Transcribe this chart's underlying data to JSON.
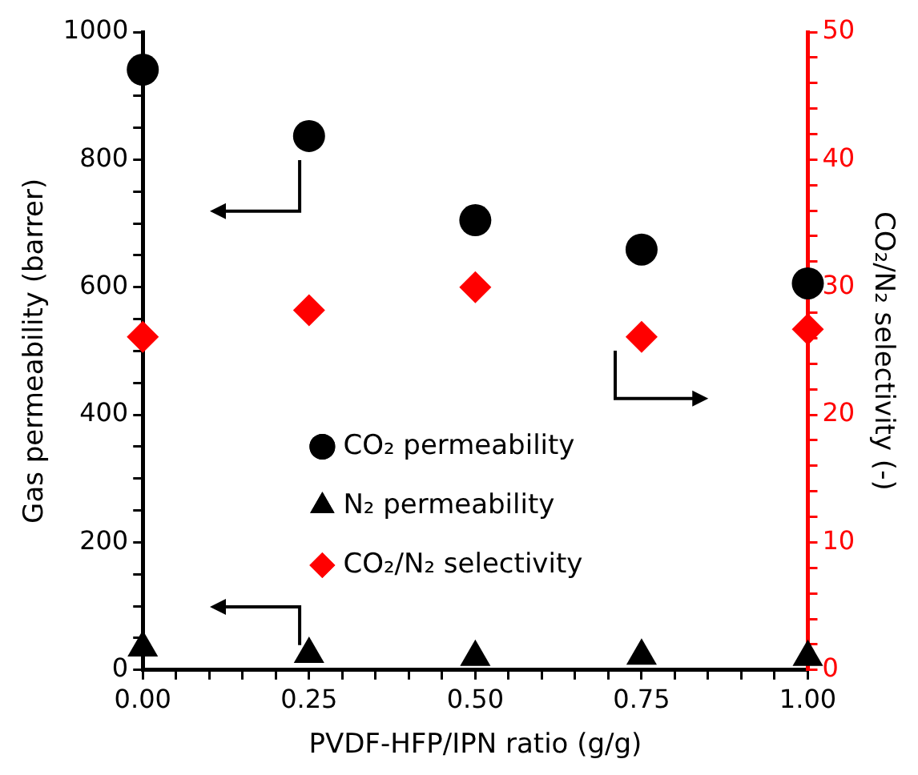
{
  "chart_data": {
    "type": "scatter",
    "xlabel": "PVDF-HFP/IPN ratio (g/g)",
    "ylabel": "Gas permeability (barrer)",
    "y2label": "CO₂/N₂ selectivity (-)",
    "x": [
      0,
      0.25,
      0.5,
      0.75,
      1
    ],
    "xlim": [
      0,
      1
    ],
    "xticks": [
      {
        "value": 0,
        "label": "0.00"
      },
      {
        "value": 0.05,
        "label": null
      },
      {
        "value": 0.1,
        "label": null
      },
      {
        "value": 0.15,
        "label": null
      },
      {
        "value": 0.2,
        "label": null
      },
      {
        "value": 0.25,
        "label": "0.25"
      },
      {
        "value": 0.3,
        "label": null
      },
      {
        "value": 0.35,
        "label": null
      },
      {
        "value": 0.4,
        "label": null
      },
      {
        "value": 0.45,
        "label": null
      },
      {
        "value": 0.5,
        "label": "0.50"
      },
      {
        "value": 0.55,
        "label": null
      },
      {
        "value": 0.6,
        "label": null
      },
      {
        "value": 0.65,
        "label": null
      },
      {
        "value": 0.7,
        "label": null
      },
      {
        "value": 0.75,
        "label": "0.75"
      },
      {
        "value": 0.8,
        "label": null
      },
      {
        "value": 0.85,
        "label": null
      },
      {
        "value": 0.9,
        "label": null
      },
      {
        "value": 0.95,
        "label": null
      },
      {
        "value": 1,
        "label": "1.00"
      }
    ],
    "ylim": [
      0,
      1000
    ],
    "yticks": [
      0,
      {
        "value": 50,
        "label": null
      },
      {
        "value": 100,
        "label": null
      },
      {
        "value": 150,
        "label": null
      },
      200,
      {
        "value": 250,
        "label": null
      },
      {
        "value": 300,
        "label": null
      },
      {
        "value": 350,
        "label": null
      },
      400,
      {
        "value": 450,
        "label": null
      },
      {
        "value": 500,
        "label": null
      },
      {
        "value": 550,
        "label": null
      },
      600,
      {
        "value": 650,
        "label": null
      },
      {
        "value": 700,
        "label": null
      },
      {
        "value": 750,
        "label": null
      },
      800,
      {
        "value": 850,
        "label": null
      },
      {
        "value": 900,
        "label": null
      },
      {
        "value": 950,
        "label": null
      },
      1000
    ],
    "y2lim": [
      0,
      50
    ],
    "y2ticks": [
      0,
      {
        "value": 2,
        "label": null
      },
      {
        "value": 4,
        "label": null
      },
      {
        "value": 6,
        "label": null
      },
      {
        "value": 8,
        "label": null
      },
      10,
      {
        "value": 12,
        "label": null
      },
      {
        "value": 14,
        "label": null
      },
      {
        "value": 16,
        "label": null
      },
      {
        "value": 18,
        "label": null
      },
      20,
      {
        "value": 22,
        "label": null
      },
      {
        "value": 24,
        "label": null
      },
      {
        "value": 26,
        "label": null
      },
      {
        "value": 28,
        "label": null
      },
      30,
      {
        "value": 32,
        "label": null
      },
      {
        "value": 34,
        "label": null
      },
      {
        "value": 36,
        "label": null
      },
      {
        "value": 38,
        "label": null
      },
      40,
      {
        "value": 42,
        "label": null
      },
      {
        "value": 44,
        "label": null
      },
      {
        "value": 46,
        "label": null
      },
      {
        "value": 48,
        "label": null
      },
      50
    ],
    "legend": "center",
    "series": [
      {
        "name": "CO₂ permeability",
        "color": "#000000",
        "marker": "circle",
        "values": [
          941,
          837,
          705,
          659,
          606
        ]
      },
      {
        "name": "N₂ permeability",
        "color": "#000000",
        "marker": "triangle",
        "values": [
          35,
          25,
          20,
          22,
          20
        ]
      },
      {
        "name": "CO₂/N₂ selectivity",
        "color": "#ff0000",
        "marker": "diamond",
        "axis": "y2",
        "values": [
          26.1,
          28.2,
          30.0,
          26.1,
          26.7
        ]
      }
    ]
  }
}
